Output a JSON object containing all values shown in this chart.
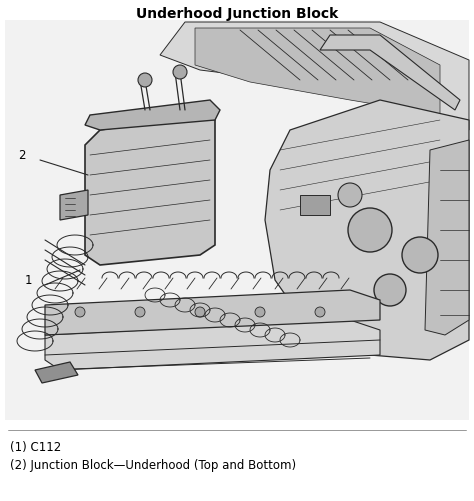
{
  "title": "Underhood Junction Block",
  "title_fontsize": 10,
  "title_fontweight": "bold",
  "bg_color": "#ffffff",
  "fig_width": 4.74,
  "fig_height": 5.01,
  "dpi": 100,
  "label1_text": "(1) C112",
  "label2_text": "(2) Junction Block—Underhood (Top and Bottom)",
  "label_fontsize": 8.5,
  "callout1_text": "1",
  "callout2_text": "2",
  "callout_fontsize": 8.5,
  "line_color": "#2a2a2a",
  "gray_light": "#cccccc",
  "gray_mid": "#999999",
  "gray_dark": "#666666",
  "gray_bg": "#e8e8e8"
}
